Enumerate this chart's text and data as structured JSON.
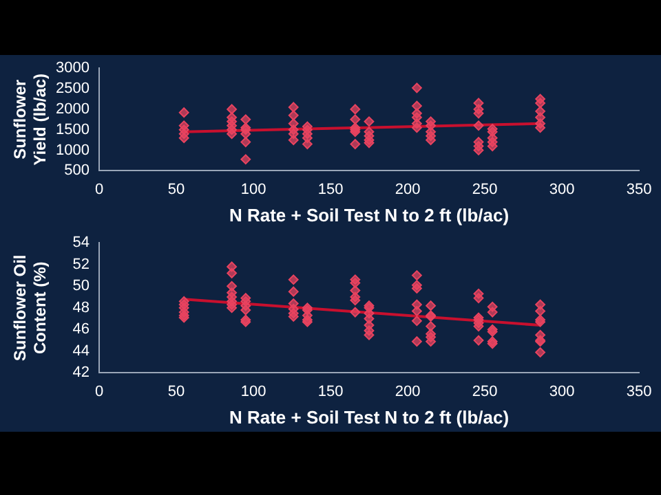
{
  "chart_data": [
    {
      "type": "scatter",
      "xlabel": "N Rate + Soil Test N to 2 ft (lb/ac)",
      "ylabel": "Sunflower Yield (lb/ac)",
      "xlim": [
        0,
        350
      ],
      "xticks": [
        0,
        50,
        100,
        150,
        200,
        250,
        300,
        350
      ],
      "ylim": [
        500,
        3000
      ],
      "yticks": [
        500,
        1000,
        1500,
        2000,
        2500,
        3000
      ],
      "legend": false,
      "grid": false,
      "marker": "diamond",
      "series": [
        {
          "color": "#e8435f",
          "x": [
            55,
            55,
            55,
            55,
            55,
            86,
            86,
            86,
            86,
            86,
            86,
            95,
            95,
            95,
            95,
            95,
            95,
            126,
            126,
            126,
            126,
            126,
            126,
            135,
            135,
            135,
            135,
            135,
            166,
            166,
            166,
            166,
            166,
            166,
            175,
            175,
            175,
            175,
            175,
            206,
            206,
            206,
            206,
            206,
            206,
            215,
            215,
            215,
            215,
            215,
            246,
            246,
            246,
            246,
            246,
            246,
            246,
            255,
            255,
            255,
            255,
            255,
            286,
            286,
            286,
            286,
            286,
            286
          ],
          "values": [
            1920,
            1600,
            1500,
            1400,
            1300,
            2000,
            1800,
            1700,
            1600,
            1500,
            1400,
            1750,
            1550,
            1500,
            1400,
            1200,
            780,
            2050,
            1850,
            1650,
            1500,
            1400,
            1250,
            1580,
            1500,
            1400,
            1300,
            1150,
            2000,
            1750,
            1550,
            1500,
            1450,
            1150,
            1700,
            1450,
            1350,
            1250,
            1180,
            2520,
            2080,
            1900,
            1800,
            1650,
            1550,
            1700,
            1600,
            1450,
            1350,
            1250,
            2150,
            2000,
            1900,
            1600,
            1200,
            1100,
            1000,
            1520,
            1450,
            1300,
            1200,
            1100,
            2250,
            2150,
            1950,
            1800,
            1650,
            1550
          ]
        },
        {
          "type": "line",
          "color": "#c8102e",
          "marker": "none",
          "x": [
            55,
            286
          ],
          "values": [
            1450,
            1650
          ]
        }
      ]
    },
    {
      "type": "scatter",
      "xlabel": "N Rate + Soil Test N to 2 ft (lb/ac)",
      "ylabel": "Sunflower Oil Content (%)",
      "xlim": [
        0,
        350
      ],
      "xticks": [
        0,
        50,
        100,
        150,
        200,
        250,
        300,
        350
      ],
      "ylim": [
        42,
        54
      ],
      "yticks": [
        42,
        44,
        46,
        48,
        50,
        52,
        54
      ],
      "legend": false,
      "grid": false,
      "marker": "diamond",
      "series": [
        {
          "color": "#e8435f",
          "x": [
            55,
            55,
            55,
            55,
            55,
            55,
            86,
            86,
            86,
            86,
            86,
            86,
            86,
            86,
            95,
            95,
            95,
            95,
            95,
            95,
            126,
            126,
            126,
            126,
            126,
            126,
            135,
            135,
            135,
            135,
            135,
            166,
            166,
            166,
            166,
            166,
            166,
            175,
            175,
            175,
            175,
            175,
            175,
            175,
            206,
            206,
            206,
            206,
            206,
            206,
            206,
            215,
            215,
            215,
            215,
            215,
            215,
            215,
            246,
            246,
            246,
            246,
            246,
            246,
            246,
            255,
            255,
            255,
            255,
            255,
            255,
            286,
            286,
            286,
            286,
            286,
            286,
            286,
            286
          ],
          "values": [
            48.6,
            48.3,
            48.0,
            47.6,
            47.3,
            47.1,
            51.8,
            51.2,
            50.0,
            49.4,
            49.0,
            48.6,
            48.3,
            48.0,
            48.9,
            48.6,
            48.2,
            47.8,
            46.9,
            46.7,
            50.6,
            49.5,
            48.4,
            47.9,
            47.5,
            47.2,
            48.0,
            47.8,
            47.3,
            46.9,
            46.7,
            50.6,
            50.3,
            49.6,
            49.0,
            48.7,
            47.6,
            48.2,
            48.0,
            47.5,
            47.0,
            46.4,
            45.9,
            45.5,
            51.0,
            50.1,
            49.8,
            48.3,
            47.7,
            46.8,
            44.9,
            48.2,
            47.3,
            47.2,
            46.3,
            45.6,
            45.3,
            44.9,
            49.3,
            48.9,
            47.1,
            46.9,
            46.6,
            46.3,
            45.0,
            48.1,
            47.6,
            46.0,
            45.8,
            44.9,
            44.7,
            48.3,
            47.7,
            46.9,
            46.7,
            45.5,
            45.0,
            44.9,
            43.9
          ]
        },
        {
          "type": "line",
          "color": "#c8102e",
          "marker": "none",
          "x": [
            55,
            286
          ],
          "values": [
            48.8,
            46.4
          ]
        }
      ]
    }
  ]
}
